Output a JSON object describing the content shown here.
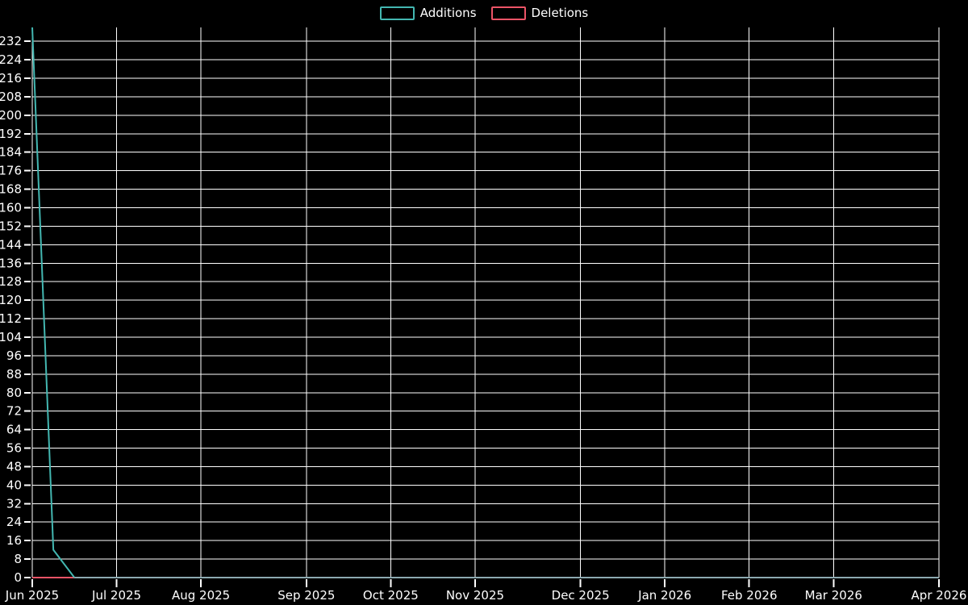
{
  "page": {
    "background": "#000000"
  },
  "legend": {
    "items": [
      {
        "label": "Additions",
        "color": "#43b7b1"
      },
      {
        "label": "Deletions",
        "color": "#ec5467"
      }
    ]
  },
  "chart_data": {
    "type": "line",
    "title": "",
    "legend_position": "top-center",
    "background": "#000000",
    "grid": {
      "show": true,
      "color": "#ffffff"
    },
    "text_color": "#ffffff",
    "axis_line_color": "#8ca9b0",
    "x_axis": {
      "unit": "week",
      "range_label": "Jun 2025 - Apr 2026",
      "ticks": [
        {
          "week": 0,
          "label": "Jun 2025"
        },
        {
          "week": 4,
          "label": "Jul 2025"
        },
        {
          "week": 8,
          "label": "Aug 2025"
        },
        {
          "week": 13,
          "label": "Sep 2025"
        },
        {
          "week": 17,
          "label": "Oct 2025"
        },
        {
          "week": 21,
          "label": "Nov 2025"
        },
        {
          "week": 26,
          "label": "Dec 2025"
        },
        {
          "week": 30,
          "label": "Jan 2026"
        },
        {
          "week": 34,
          "label": "Feb 2026"
        },
        {
          "week": 38,
          "label": "Mar 2026"
        },
        {
          "week": 43,
          "label": "Apr 2026"
        }
      ]
    },
    "y_axis": {
      "min": 0,
      "max": 238,
      "tick_step": 8,
      "tick_max": 232
    },
    "series": [
      {
        "name": "Additions",
        "color": "#43b7b1",
        "points": [
          {
            "week": 0,
            "value": 238
          },
          {
            "week": 1,
            "value": 12
          },
          {
            "week": 2,
            "value": 0
          }
        ]
      },
      {
        "name": "Deletions",
        "color": "#ec5467",
        "points": [
          {
            "week": 0,
            "value": 0
          },
          {
            "week": 1,
            "value": 0
          },
          {
            "week": 2,
            "value": 0
          }
        ]
      }
    ]
  }
}
